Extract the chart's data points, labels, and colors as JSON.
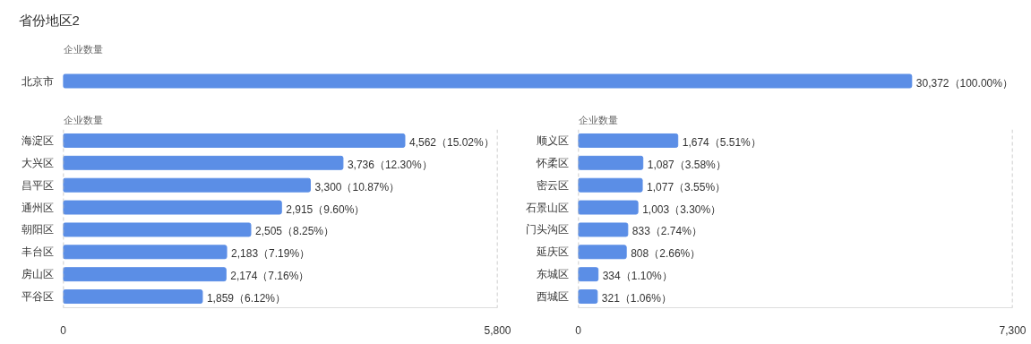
{
  "chart_data": [
    {
      "type": "bar",
      "orientation": "horizontal",
      "title": "省份地区2",
      "ylabel": "企业数量",
      "categories": [
        "北京市"
      ],
      "values": [
        30372
      ],
      "value_labels": [
        "30,372（100.00%）"
      ],
      "color": "#5b8ee6",
      "tick_labels": "y"
    },
    {
      "type": "bar",
      "orientation": "horizontal",
      "ylabel": "企业数量",
      "categories": [
        "海淀区",
        "大兴区",
        "昌平区",
        "通州区",
        "朝阳区",
        "丰台区",
        "房山区",
        "平谷区"
      ],
      "values": [
        4562,
        3736,
        3300,
        2915,
        2505,
        2183,
        2174,
        1859
      ],
      "value_labels": [
        "4,562（15.02%）",
        "3,736（12.30%）",
        "3,300（10.87%）",
        "2,915（9.60%）",
        "2,505（8.25%）",
        "2,183（7.19%）",
        "2,174（7.16%）",
        "1,859（6.12%）"
      ],
      "color": "#5b8ee6",
      "xlim": [
        0,
        5800
      ],
      "xticks": [
        0,
        {
          "value": 5800,
          "label": "5,800"
        }
      ],
      "grid": "x"
    },
    {
      "type": "bar",
      "orientation": "horizontal",
      "ylabel": "企业数量",
      "categories": [
        "顺义区",
        "怀柔区",
        "密云区",
        "石景山区",
        "门头沟区",
        "延庆区",
        "东城区",
        "西城区"
      ],
      "values": [
        1674,
        1087,
        1077,
        1003,
        833,
        808,
        334,
        321
      ],
      "value_labels": [
        "1,674（5.51%）",
        "1,087（3.58%）",
        "1,077（3.55%）",
        "1,003（3.30%）",
        "833（2.74%）",
        "808（2.66%）",
        "334（1.10%）",
        "321（1.06%）"
      ],
      "color": "#5b8ee6",
      "xlim": [
        0,
        7300
      ],
      "xticks": [
        0,
        {
          "value": 7300,
          "label": "7,300"
        }
      ],
      "grid": "x"
    }
  ]
}
